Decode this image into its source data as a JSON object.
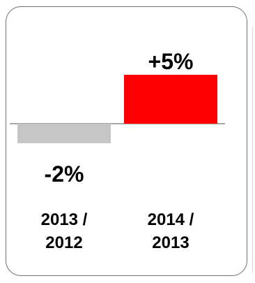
{
  "chart_data": {
    "type": "bar",
    "categories": [
      [
        "2013 /",
        "2012"
      ],
      [
        "2014 /",
        "2013"
      ]
    ],
    "values": [
      -2,
      5
    ],
    "value_labels": [
      "-2%",
      "+5%"
    ],
    "colors": [
      "#c6c6c6",
      "#ff0000"
    ],
    "baseline_color": "#8c8c8c",
    "ylim": [
      -2,
      5
    ],
    "grid": false
  }
}
